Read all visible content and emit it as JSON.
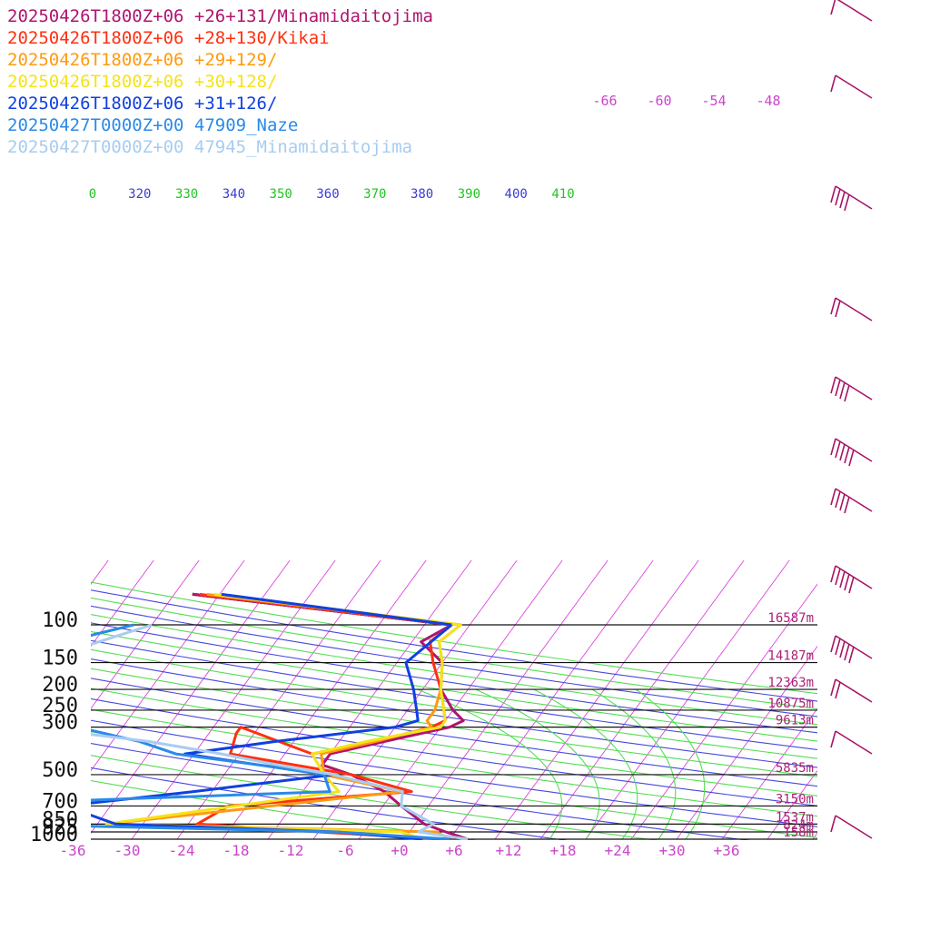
{
  "legend": [
    {
      "label": "20250426T1800Z+06 +26+131/Minamidaitojima",
      "color": "#b0146e"
    },
    {
      "label": "20250426T1800Z+06 +28+130/Kikai",
      "color": "#ff3010"
    },
    {
      "label": "20250426T1800Z+06 +29+129/",
      "color": "#ff9a10"
    },
    {
      "label": "20250426T1800Z+06 +30+128/",
      "color": "#f5e31a"
    },
    {
      "label": "20250426T1800Z+06 +31+126/",
      "color": "#1040e0"
    },
    {
      "label": "20250427T0000Z+00 47909_Naze",
      "color": "#2a8ae8"
    },
    {
      "label": "20250427T0000Z+00 47945_Minamidaitojima",
      "color": "#a8ccf0"
    }
  ],
  "chart_data": {
    "type": "line",
    "title": "",
    "xlabel": "",
    "ylabel": "",
    "x_axis": {
      "unit": "degC",
      "ticks": [
        "-36",
        "-30",
        "-24",
        "-18",
        "-12",
        "-6",
        "+0",
        "+6",
        "+12",
        "+18",
        "+24",
        "+30",
        "+36"
      ]
    },
    "y_axis": {
      "unit": "hPa",
      "scale": "log",
      "ticks": [
        "100",
        "150",
        "200",
        "250",
        "300",
        "500",
        "700",
        "850",
        "925",
        "1000"
      ]
    },
    "heights": [
      "16587m",
      "14187m",
      "12363m",
      "10875m",
      "9613m",
      "5835m",
      "3150m",
      "1537m",
      "824m",
      "158m"
    ],
    "mixing_ratio_labels": [
      "-66",
      "-60",
      "-54",
      "-48"
    ],
    "theta_labels": [
      {
        "label": "0",
        "color": "#22c322"
      },
      {
        "label": "320",
        "color": "#3b3bd6"
      },
      {
        "label": "330",
        "color": "#22c322"
      },
      {
        "label": "340",
        "color": "#3b3bd6"
      },
      {
        "label": "350",
        "color": "#22c322"
      },
      {
        "label": "360",
        "color": "#3b3bd6"
      },
      {
        "label": "370",
        "color": "#22c322"
      },
      {
        "label": "380",
        "color": "#3b3bd6"
      },
      {
        "label": "390",
        "color": "#22c322"
      },
      {
        "label": "400",
        "color": "#3b3bd6"
      },
      {
        "label": "410",
        "color": "#22c322"
      }
    ],
    "grid": true,
    "series": [
      {
        "name": "20250426T1800Z+06 +26+131/Minamidaitojima",
        "color": "#b0146e",
        "profile": [
          [
            -43,
            72
          ],
          [
            -12,
            100
          ],
          [
            -14,
            120
          ],
          [
            -10,
            150
          ],
          [
            -8,
            200
          ],
          [
            -5,
            250
          ],
          [
            -3,
            280
          ],
          [
            -4,
            300
          ],
          [
            -10,
            350
          ],
          [
            -15,
            400
          ],
          [
            -15,
            450
          ],
          [
            -11,
            500
          ],
          [
            -6,
            600
          ],
          [
            -3,
            700
          ],
          [
            1,
            850
          ],
          [
            4,
            925
          ],
          [
            7,
            1000
          ]
        ]
      },
      {
        "name": "20250426T1800Z+06 +28+130/Kikai",
        "color": "#ff3010",
        "profile": [
          [
            -43,
            72
          ],
          [
            -12,
            100
          ],
          [
            -13,
            120
          ],
          [
            -11,
            150
          ],
          [
            -8,
            200
          ],
          [
            -6,
            250
          ],
          [
            -5,
            280
          ],
          [
            -6,
            300
          ],
          [
            -11,
            350
          ],
          [
            -17,
            400
          ],
          [
            -27,
            300
          ],
          [
            -27,
            320
          ],
          [
            -26,
            400
          ],
          [
            -11,
            500
          ],
          [
            -3,
            600
          ],
          [
            -22,
            700
          ],
          [
            -24,
            850
          ],
          [
            -10,
            925
          ],
          [
            4,
            1000
          ]
        ]
      },
      {
        "name": "20250426T1800Z+06 +29+129/",
        "color": "#ff9a10",
        "profile": [
          [
            -43,
            72
          ],
          [
            -11,
            100
          ],
          [
            -12,
            120
          ],
          [
            -10,
            150
          ],
          [
            -8,
            200
          ],
          [
            -7,
            250
          ],
          [
            -7,
            280
          ],
          [
            -6,
            300
          ],
          [
            -11,
            350
          ],
          [
            -16,
            400
          ],
          [
            -14,
            500
          ],
          [
            -4,
            600
          ],
          [
            -34,
            850
          ],
          [
            3,
            925
          ],
          [
            5,
            1000
          ]
        ]
      },
      {
        "name": "20250426T1800Z+06 +30+128/",
        "color": "#f5e31a",
        "profile": [
          [
            -43,
            72
          ],
          [
            -11,
            100
          ],
          [
            -12,
            120
          ],
          [
            -10,
            150
          ],
          [
            -8,
            200
          ],
          [
            -6,
            250
          ],
          [
            -5,
            280
          ],
          [
            -5,
            300
          ],
          [
            -12,
            350
          ],
          [
            -17,
            400
          ],
          [
            -14,
            500
          ],
          [
            -11,
            600
          ],
          [
            -34,
            850
          ],
          [
            -1,
            925
          ],
          [
            2,
            1000
          ]
        ]
      },
      {
        "name": "20250426T1800Z+06 +31+126/",
        "color": "#1040e0",
        "profile": [
          [
            -43,
            72
          ],
          [
            -12,
            100
          ],
          [
            -14,
            150
          ],
          [
            -11,
            200
          ],
          [
            -9,
            250
          ],
          [
            -8,
            280
          ],
          [
            -10,
            300
          ],
          [
            -22,
            350
          ],
          [
            -31,
            400
          ],
          [
            -22,
            450
          ],
          [
            -13,
            500
          ],
          [
            -27,
            600
          ],
          [
            -40,
            700
          ],
          [
            -33,
            850
          ],
          [
            -8,
            925
          ],
          [
            2,
            1000
          ]
        ]
      },
      {
        "name": "20250427T0000Z+00 47909_Naze",
        "color": "#2a8ae8",
        "profile": [
          [
            -47,
            100
          ],
          [
            -61,
            150
          ],
          [
            -70,
            200
          ],
          [
            -72,
            250
          ],
          [
            -45,
            300
          ],
          [
            -37,
            350
          ],
          [
            -32,
            400
          ],
          [
            -22,
            450
          ],
          [
            -14,
            500
          ],
          [
            -12,
            600
          ],
          [
            -55,
            700
          ],
          [
            -46,
            850
          ],
          [
            -8,
            925
          ],
          [
            5,
            1000
          ]
        ]
      },
      {
        "name": "20250427T0000Z+00 47945_Minamidaitojima",
        "color": "#a8ccf0",
        "profile": [
          [
            -45,
            100
          ],
          [
            -55,
            150
          ],
          [
            -74,
            200
          ],
          [
            -58,
            250
          ],
          [
            -50,
            300
          ],
          [
            -36,
            350
          ],
          [
            -27,
            400
          ],
          [
            -20,
            450
          ],
          [
            -13,
            500
          ],
          [
            -4,
            600
          ],
          [
            -3,
            700
          ],
          [
            2,
            850
          ],
          [
            1,
            925
          ],
          [
            7,
            1000
          ]
        ]
      }
    ]
  }
}
